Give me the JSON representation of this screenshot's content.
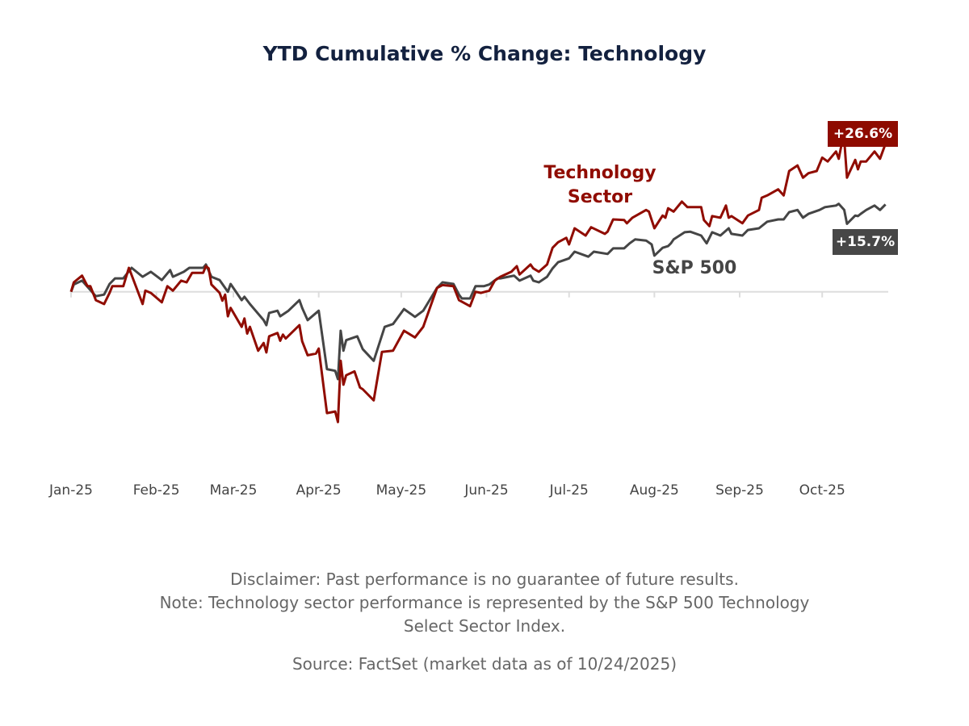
{
  "title": "YTD Cumulative % Change: Technology",
  "colors": {
    "technology": "#900c00",
    "sp500": "#454545",
    "title": "#13213f",
    "zero_line": "#dddddd"
  },
  "labels": {
    "technology_line1": "Technology",
    "technology_line2": "Sector",
    "sp500": "S&P 500",
    "technology_end": "+26.6%",
    "sp500_end": "+15.7%"
  },
  "footer": {
    "disclaimer": "Disclaimer: Past performance is no guarantee of future results.",
    "note_line1": "Note: Technology sector performance is represented by the S&P 500 Technology",
    "note_line2": "Select Sector Index.",
    "source": "Source: FactSet (market data as of 10/24/2025)"
  },
  "chart_data": {
    "type": "line",
    "title": "YTD Cumulative % Change: Technology",
    "xlabel": "",
    "ylabel": "",
    "x_ticks": [
      {
        "date": "2025-01-01",
        "label": "Jan-25"
      },
      {
        "date": "2025-02-01",
        "label": "Feb-25"
      },
      {
        "date": "2025-03-01",
        "label": "Mar-25"
      },
      {
        "date": "2025-04-01",
        "label": "Apr-25"
      },
      {
        "date": "2025-05-01",
        "label": "May-25"
      },
      {
        "date": "2025-06-01",
        "label": "Jun-25"
      },
      {
        "date": "2025-07-01",
        "label": "Jul-25"
      },
      {
        "date": "2025-08-01",
        "label": "Aug-25"
      },
      {
        "date": "2025-09-01",
        "label": "Sep-25"
      },
      {
        "date": "2025-10-01",
        "label": "Oct-25"
      }
    ],
    "xlim": [
      "2025-01-01",
      "2025-10-25"
    ],
    "ylim": [
      -25,
      30
    ],
    "y_unit": "%",
    "grid": false,
    "zero_line": true,
    "series": [
      {
        "name": "Technology Sector",
        "color": "#900c00",
        "end_label": "+26.6%",
        "points": [
          [
            "2025-01-01",
            0
          ],
          [
            "2025-01-02",
            1.7
          ],
          [
            "2025-01-05",
            2.9
          ],
          [
            "2025-01-07",
            1.0
          ],
          [
            "2025-01-08",
            1.0
          ],
          [
            "2025-01-10",
            -1.5
          ],
          [
            "2025-01-13",
            -2.2
          ],
          [
            "2025-01-15",
            -0.2
          ],
          [
            "2025-01-16",
            1.0
          ],
          [
            "2025-01-20",
            1.0
          ],
          [
            "2025-01-22",
            4.3
          ],
          [
            "2025-01-27",
            -2.2
          ],
          [
            "2025-01-28",
            0.2
          ],
          [
            "2025-01-30",
            -0.2
          ],
          [
            "2025-02-03",
            -1.9
          ],
          [
            "2025-02-05",
            1.0
          ],
          [
            "2025-02-07",
            0.2
          ],
          [
            "2025-02-10",
            2.0
          ],
          [
            "2025-02-12",
            1.7
          ],
          [
            "2025-02-14",
            3.4
          ],
          [
            "2025-02-18",
            3.4
          ],
          [
            "2025-02-19",
            4.6
          ],
          [
            "2025-02-20",
            4.2
          ],
          [
            "2025-02-21",
            1.3
          ],
          [
            "2025-02-24",
            -0.2
          ],
          [
            "2025-02-25",
            -1.6
          ],
          [
            "2025-02-26",
            -0.5
          ],
          [
            "2025-02-27",
            -4.4
          ],
          [
            "2025-02-28",
            -2.9
          ],
          [
            "2025-03-04",
            -6.3
          ],
          [
            "2025-03-05",
            -4.8
          ],
          [
            "2025-03-06",
            -7.5
          ],
          [
            "2025-03-07",
            -6.3
          ],
          [
            "2025-03-10",
            -10.6
          ],
          [
            "2025-03-12",
            -9.2
          ],
          [
            "2025-03-13",
            -10.9
          ],
          [
            "2025-03-14",
            -8.0
          ],
          [
            "2025-03-17",
            -7.4
          ],
          [
            "2025-03-18",
            -8.8
          ],
          [
            "2025-03-19",
            -7.7
          ],
          [
            "2025-03-20",
            -8.4
          ],
          [
            "2025-03-25",
            -6.0
          ],
          [
            "2025-03-26",
            -8.9
          ],
          [
            "2025-03-28",
            -11.4
          ],
          [
            "2025-03-31",
            -11.1
          ],
          [
            "2025-04-01",
            -10.2
          ],
          [
            "2025-04-04",
            -21.8
          ],
          [
            "2025-04-07",
            -21.5
          ],
          [
            "2025-04-08",
            -23.4
          ],
          [
            "2025-04-09",
            -12.4
          ],
          [
            "2025-04-10",
            -16.7
          ],
          [
            "2025-04-11",
            -15.0
          ],
          [
            "2025-04-14",
            -14.3
          ],
          [
            "2025-04-16",
            -17.2
          ],
          [
            "2025-04-17",
            -17.5
          ],
          [
            "2025-04-21",
            -19.5
          ],
          [
            "2025-04-24",
            -10.8
          ],
          [
            "2025-04-28",
            -10.6
          ],
          [
            "2025-05-02",
            -7.0
          ],
          [
            "2025-05-06",
            -8.2
          ],
          [
            "2025-05-09",
            -6.3
          ],
          [
            "2025-05-14",
            0.7
          ],
          [
            "2025-05-16",
            1.2
          ],
          [
            "2025-05-20",
            1.0
          ],
          [
            "2025-05-22",
            -1.5
          ],
          [
            "2025-05-26",
            -2.6
          ],
          [
            "2025-05-28",
            0.0
          ],
          [
            "2025-05-30",
            -0.2
          ],
          [
            "2025-06-02",
            0.2
          ],
          [
            "2025-06-04",
            2.0
          ],
          [
            "2025-06-06",
            2.7
          ],
          [
            "2025-06-10",
            3.6
          ],
          [
            "2025-06-12",
            4.6
          ],
          [
            "2025-06-13",
            3.1
          ],
          [
            "2025-06-17",
            4.9
          ],
          [
            "2025-06-18",
            4.2
          ],
          [
            "2025-06-20",
            3.6
          ],
          [
            "2025-06-23",
            4.9
          ],
          [
            "2025-06-25",
            7.9
          ],
          [
            "2025-06-27",
            8.9
          ],
          [
            "2025-06-30",
            9.7
          ],
          [
            "2025-07-01",
            8.5
          ],
          [
            "2025-07-03",
            11.4
          ],
          [
            "2025-07-07",
            10.1
          ],
          [
            "2025-07-09",
            11.6
          ],
          [
            "2025-07-14",
            10.4
          ],
          [
            "2025-07-15",
            10.8
          ],
          [
            "2025-07-17",
            13.0
          ],
          [
            "2025-07-21",
            12.9
          ],
          [
            "2025-07-22",
            12.3
          ],
          [
            "2025-07-24",
            13.3
          ],
          [
            "2025-07-29",
            14.7
          ],
          [
            "2025-07-30",
            14.4
          ],
          [
            "2025-08-01",
            11.4
          ],
          [
            "2025-08-04",
            13.7
          ],
          [
            "2025-08-05",
            13.3
          ],
          [
            "2025-08-06",
            15.0
          ],
          [
            "2025-08-08",
            14.4
          ],
          [
            "2025-08-11",
            16.2
          ],
          [
            "2025-08-13",
            15.2
          ],
          [
            "2025-08-18",
            15.2
          ],
          [
            "2025-08-19",
            12.9
          ],
          [
            "2025-08-21",
            11.8
          ],
          [
            "2025-08-22",
            13.6
          ],
          [
            "2025-08-25",
            13.3
          ],
          [
            "2025-08-27",
            15.5
          ],
          [
            "2025-08-28",
            13.3
          ],
          [
            "2025-08-29",
            13.6
          ],
          [
            "2025-09-02",
            12.3
          ],
          [
            "2025-09-04",
            13.7
          ],
          [
            "2025-09-08",
            14.7
          ],
          [
            "2025-09-09",
            16.9
          ],
          [
            "2025-09-11",
            17.3
          ],
          [
            "2025-09-15",
            18.4
          ],
          [
            "2025-09-17",
            17.3
          ],
          [
            "2025-09-19",
            21.7
          ],
          [
            "2025-09-22",
            22.7
          ],
          [
            "2025-09-24",
            20.5
          ],
          [
            "2025-09-26",
            21.3
          ],
          [
            "2025-09-29",
            21.7
          ],
          [
            "2025-10-01",
            24.1
          ],
          [
            "2025-10-03",
            23.4
          ],
          [
            "2025-10-06",
            25.2
          ],
          [
            "2025-10-07",
            23.9
          ],
          [
            "2025-10-08",
            26.4
          ],
          [
            "2025-10-09",
            27.3
          ],
          [
            "2025-10-10",
            20.5
          ],
          [
            "2025-10-13",
            23.7
          ],
          [
            "2025-10-14",
            22.0
          ],
          [
            "2025-10-15",
            23.4
          ],
          [
            "2025-10-17",
            23.4
          ],
          [
            "2025-10-20",
            25.2
          ],
          [
            "2025-10-22",
            23.9
          ],
          [
            "2025-10-24",
            26.6
          ]
        ]
      },
      {
        "name": "S&P 500",
        "color": "#454545",
        "end_label": "+15.7%",
        "points": [
          [
            "2025-01-01",
            0
          ],
          [
            "2025-01-02",
            1.3
          ],
          [
            "2025-01-05",
            2.0
          ],
          [
            "2025-01-10",
            -0.8
          ],
          [
            "2025-01-13",
            -0.5
          ],
          [
            "2025-01-15",
            1.4
          ],
          [
            "2025-01-17",
            2.4
          ],
          [
            "2025-01-20",
            2.4
          ],
          [
            "2025-01-23",
            4.3
          ],
          [
            "2025-01-27",
            2.7
          ],
          [
            "2025-01-30",
            3.6
          ],
          [
            "2025-02-03",
            2.1
          ],
          [
            "2025-02-06",
            3.9
          ],
          [
            "2025-02-07",
            2.7
          ],
          [
            "2025-02-11",
            3.6
          ],
          [
            "2025-02-13",
            4.3
          ],
          [
            "2025-02-18",
            4.3
          ],
          [
            "2025-02-19",
            4.9
          ],
          [
            "2025-02-21",
            2.7
          ],
          [
            "2025-02-24",
            2.1
          ],
          [
            "2025-02-27",
            0.0
          ],
          [
            "2025-02-28",
            1.4
          ],
          [
            "2025-03-04",
            -1.5
          ],
          [
            "2025-03-05",
            -0.9
          ],
          [
            "2025-03-07",
            -2.2
          ],
          [
            "2025-03-12",
            -5.1
          ],
          [
            "2025-03-13",
            -6.0
          ],
          [
            "2025-03-14",
            -3.8
          ],
          [
            "2025-03-17",
            -3.4
          ],
          [
            "2025-03-18",
            -4.4
          ],
          [
            "2025-03-21",
            -3.4
          ],
          [
            "2025-03-25",
            -1.5
          ],
          [
            "2025-03-26",
            -2.9
          ],
          [
            "2025-03-28",
            -5.1
          ],
          [
            "2025-04-01",
            -3.4
          ],
          [
            "2025-04-04",
            -13.9
          ],
          [
            "2025-04-07",
            -14.2
          ],
          [
            "2025-04-08",
            -15.7
          ],
          [
            "2025-04-09",
            -7.0
          ],
          [
            "2025-04-10",
            -10.6
          ],
          [
            "2025-04-11",
            -8.7
          ],
          [
            "2025-04-15",
            -8.0
          ],
          [
            "2025-04-17",
            -10.3
          ],
          [
            "2025-04-21",
            -12.4
          ],
          [
            "2025-04-25",
            -6.3
          ],
          [
            "2025-04-28",
            -5.8
          ],
          [
            "2025-05-02",
            -3.1
          ],
          [
            "2025-05-06",
            -4.5
          ],
          [
            "2025-05-09",
            -3.4
          ],
          [
            "2025-05-14",
            0.7
          ],
          [
            "2025-05-16",
            1.7
          ],
          [
            "2025-05-20",
            1.4
          ],
          [
            "2025-05-22",
            -0.5
          ],
          [
            "2025-05-23",
            -1.2
          ],
          [
            "2025-05-26",
            -1.2
          ],
          [
            "2025-05-28",
            1.0
          ],
          [
            "2025-05-31",
            1.0
          ],
          [
            "2025-06-02",
            1.3
          ],
          [
            "2025-06-05",
            2.4
          ],
          [
            "2025-06-06",
            2.4
          ],
          [
            "2025-06-11",
            2.9
          ],
          [
            "2025-06-13",
            2.0
          ],
          [
            "2025-06-17",
            2.9
          ],
          [
            "2025-06-18",
            2.0
          ],
          [
            "2025-06-20",
            1.7
          ],
          [
            "2025-06-23",
            2.7
          ],
          [
            "2025-06-25",
            4.2
          ],
          [
            "2025-06-27",
            5.3
          ],
          [
            "2025-07-01",
            6.0
          ],
          [
            "2025-07-03",
            7.2
          ],
          [
            "2025-07-08",
            6.3
          ],
          [
            "2025-07-10",
            7.2
          ],
          [
            "2025-07-15",
            6.8
          ],
          [
            "2025-07-17",
            7.8
          ],
          [
            "2025-07-21",
            7.8
          ],
          [
            "2025-07-23",
            8.7
          ],
          [
            "2025-07-25",
            9.4
          ],
          [
            "2025-07-29",
            9.2
          ],
          [
            "2025-07-31",
            8.5
          ],
          [
            "2025-08-01",
            6.5
          ],
          [
            "2025-08-04",
            7.9
          ],
          [
            "2025-08-06",
            8.2
          ],
          [
            "2025-08-07",
            8.7
          ],
          [
            "2025-08-08",
            9.4
          ],
          [
            "2025-08-12",
            10.7
          ],
          [
            "2025-08-14",
            10.8
          ],
          [
            "2025-08-18",
            10.1
          ],
          [
            "2025-08-20",
            8.7
          ],
          [
            "2025-08-22",
            10.7
          ],
          [
            "2025-08-25",
            10.1
          ],
          [
            "2025-08-28",
            11.4
          ],
          [
            "2025-08-29",
            10.4
          ],
          [
            "2025-09-02",
            10.1
          ],
          [
            "2025-09-04",
            11.1
          ],
          [
            "2025-09-08",
            11.4
          ],
          [
            "2025-09-11",
            12.6
          ],
          [
            "2025-09-15",
            13.0
          ],
          [
            "2025-09-17",
            13.0
          ],
          [
            "2025-09-19",
            14.3
          ],
          [
            "2025-09-22",
            14.7
          ],
          [
            "2025-09-24",
            13.3
          ],
          [
            "2025-09-26",
            14.0
          ],
          [
            "2025-09-30",
            14.7
          ],
          [
            "2025-10-02",
            15.2
          ],
          [
            "2025-10-06",
            15.5
          ],
          [
            "2025-10-07",
            15.8
          ],
          [
            "2025-10-09",
            14.7
          ],
          [
            "2025-10-10",
            12.2
          ],
          [
            "2025-10-13",
            13.7
          ],
          [
            "2025-10-14",
            13.6
          ],
          [
            "2025-10-15",
            14.0
          ],
          [
            "2025-10-17",
            14.7
          ],
          [
            "2025-10-20",
            15.5
          ],
          [
            "2025-10-22",
            14.7
          ],
          [
            "2025-10-24",
            15.7
          ]
        ]
      }
    ]
  }
}
